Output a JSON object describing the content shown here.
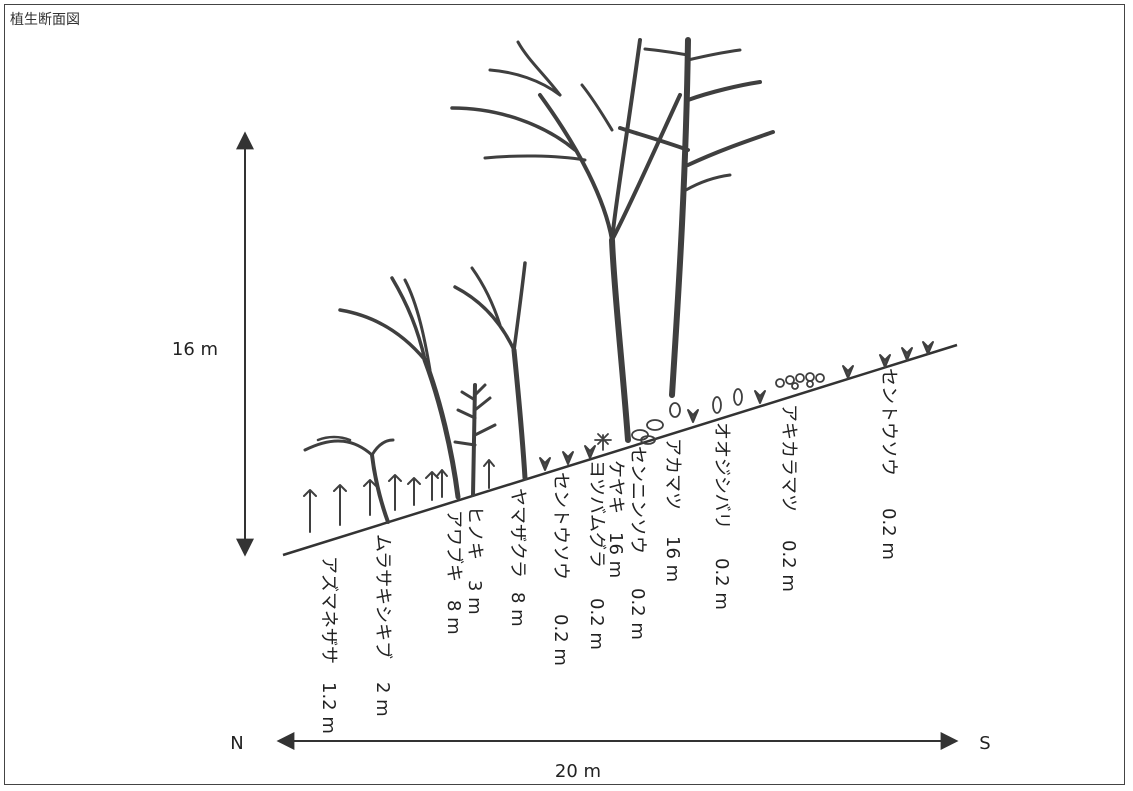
{
  "title": "植生断面図",
  "height_label": "16 m",
  "width_label": "20 m",
  "north_label": "N",
  "south_label": "S",
  "species": [
    {
      "name": "アズマネザサ",
      "height": "1.2 m"
    },
    {
      "name": "ムラサキシキブ",
      "height": "2 m"
    },
    {
      "name": "ヒノキ",
      "height": "3 m"
    },
    {
      "name": "アワブキ",
      "height": "8 m"
    },
    {
      "name": "ヤマザクラ",
      "height": "8 m"
    },
    {
      "name": "セントウソウ",
      "height": "0.2 m"
    },
    {
      "name": "ヨツバムグラ",
      "height": "0.2 m"
    },
    {
      "name": "ケヤキ",
      "height": "16 m"
    },
    {
      "name": "センニンソウ",
      "height": "0.2 m"
    },
    {
      "name": "アカマツ",
      "height": "16 m"
    },
    {
      "name": "オオジシバリ",
      "height": "0.2 m"
    },
    {
      "name": "アキカラマツ",
      "height": "0.2 m"
    },
    {
      "name": "セントウソウ",
      "height": "0.2 m"
    }
  ]
}
